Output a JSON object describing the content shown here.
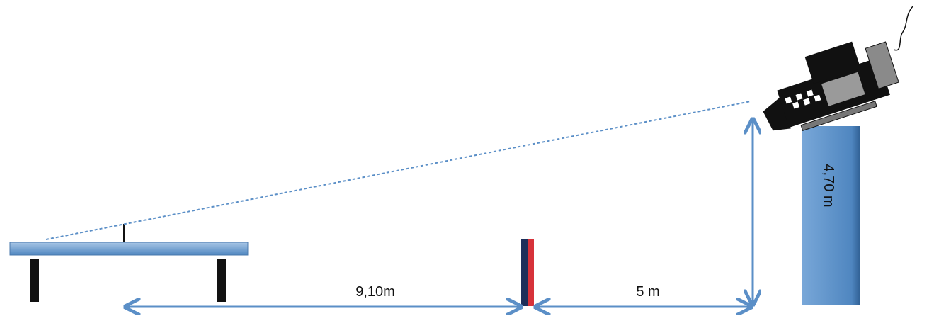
{
  "labels": {
    "distance_table_to_net": "9,10m",
    "distance_net_to_camera": "5 m",
    "camera_height": "4,70 m"
  }
}
